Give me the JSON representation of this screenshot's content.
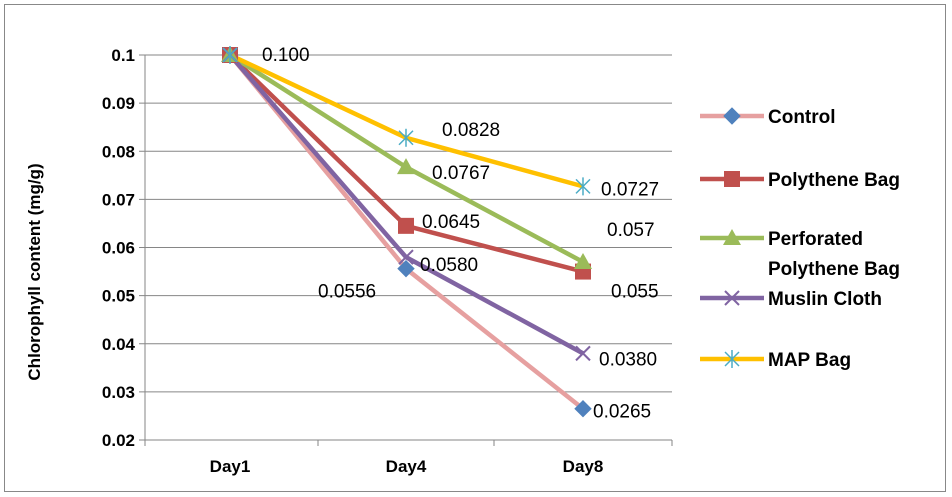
{
  "chart_data": {
    "type": "line",
    "categories": [
      "Day1",
      "Day4",
      "Day8"
    ],
    "ylabel": "Chlorophyll content (mg/g)",
    "ylim": [
      0.02,
      0.1
    ],
    "yticks": [
      "0.1",
      "0.09",
      "0.08",
      "0.07",
      "0.06",
      "0.05",
      "0.04",
      "0.03",
      "0.02"
    ],
    "grid": true,
    "legend_position": "right",
    "series": [
      {
        "name": "Control",
        "values": [
          0.1,
          0.0556,
          0.0265
        ],
        "color": "#E6A0A0",
        "marker": "diamond",
        "marker_color": "#4F81BD",
        "labels": [
          "",
          "0.0556",
          "0.0265"
        ]
      },
      {
        "name": "Polythene Bag",
        "values": [
          0.1,
          0.0645,
          0.055
        ],
        "color": "#C0504D",
        "marker": "square",
        "marker_color": "#C0504D",
        "labels": [
          "",
          "0.0645",
          "0.055"
        ]
      },
      {
        "name": "Perforated Polythene Bag",
        "values": [
          0.1,
          0.0767,
          0.057
        ],
        "color": "#9BBB59",
        "marker": "triangle",
        "marker_color": "#9BBB59",
        "labels": [
          "",
          "0.0767",
          "0.057"
        ]
      },
      {
        "name": "Muslin Cloth",
        "values": [
          0.1,
          0.058,
          0.038
        ],
        "color": "#8064A2",
        "marker": "x",
        "marker_color": "#8064A2",
        "labels": [
          "",
          "0.0580",
          "0.0380"
        ]
      },
      {
        "name": "MAP Bag",
        "values": [
          0.1,
          0.0828,
          0.0727
        ],
        "color": "#FFC000",
        "marker": "star",
        "marker_color": "#4BACC6",
        "labels": [
          "0.100",
          "0.0828",
          "0.0727"
        ]
      }
    ]
  }
}
